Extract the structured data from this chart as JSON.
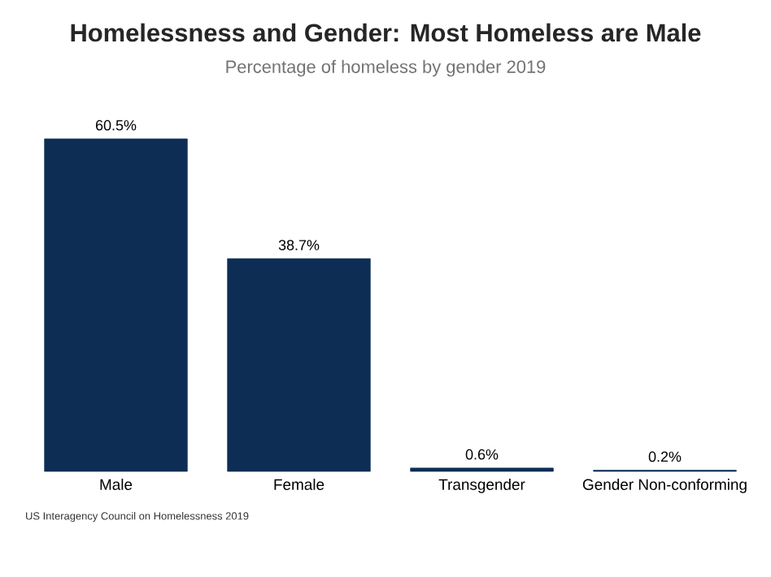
{
  "chart_data": {
    "type": "bar",
    "title": "Homelessness and Gender: Most Homeless are Male",
    "subtitle": "Percentage of homeless by gender 2019",
    "categories": [
      "Male",
      "Female",
      "Transgender",
      "Gender Non-conforming"
    ],
    "values": [
      60.5,
      38.7,
      0.6,
      0.2
    ],
    "value_labels": [
      "60.5%",
      "38.7%",
      "0.6%",
      "0.2%"
    ],
    "color": "#0d2d55",
    "annotations": [
      "US Interagency Council on Homelessness 2019"
    ]
  }
}
